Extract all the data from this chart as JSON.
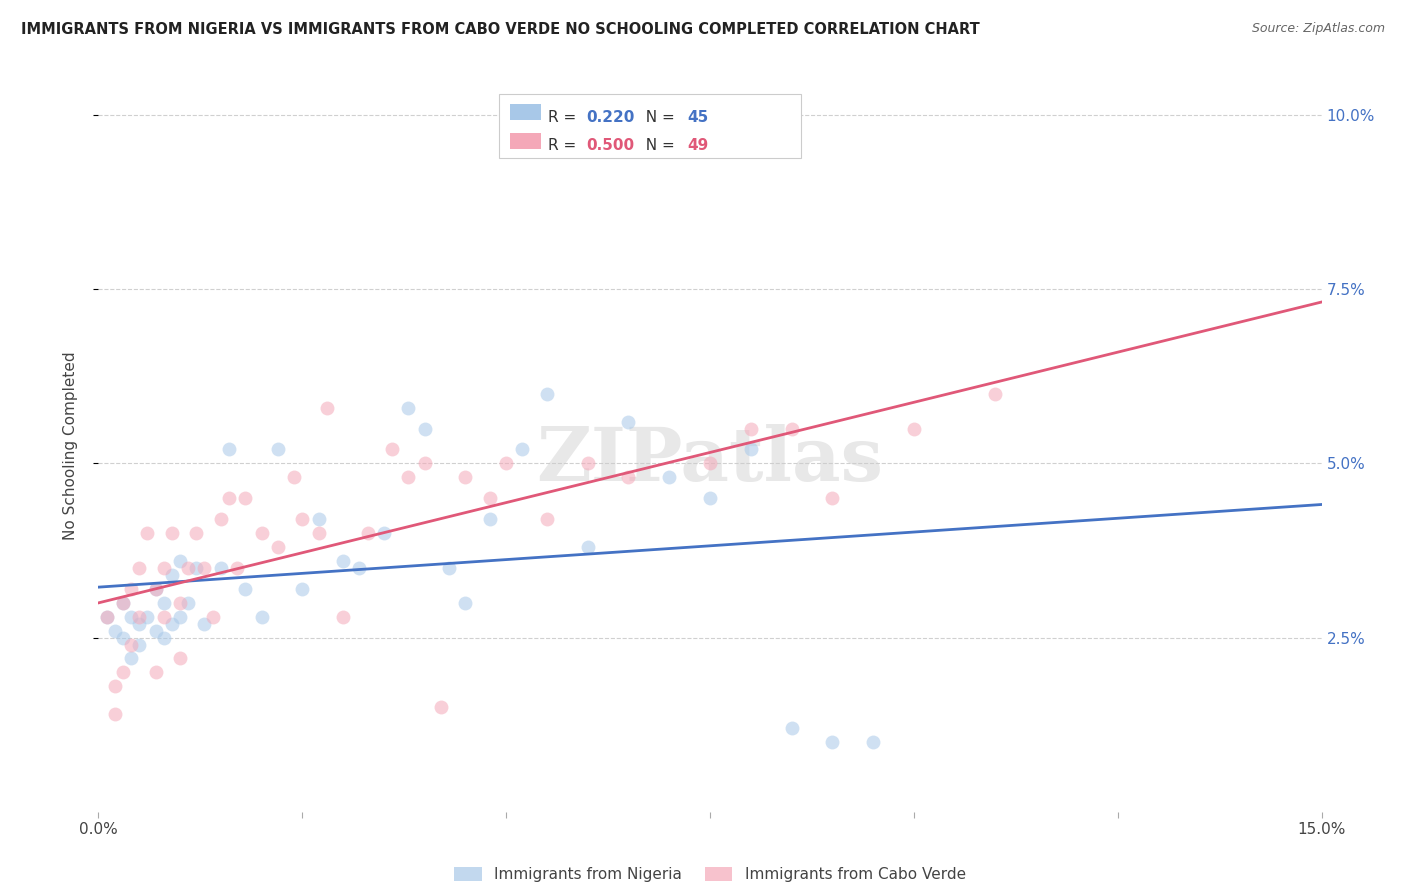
{
  "title": "IMMIGRANTS FROM NIGERIA VS IMMIGRANTS FROM CABO VERDE NO SCHOOLING COMPLETED CORRELATION CHART",
  "source": "Source: ZipAtlas.com",
  "ylabel": "No Schooling Completed",
  "xlim": [
    0.0,
    0.15
  ],
  "ylim": [
    0.0,
    0.105
  ],
  "blue_color": "#a8c8e8",
  "pink_color": "#f4a8b8",
  "blue_line_color": "#4472c4",
  "pink_line_color": "#e05878",
  "blue_r_color": "#4472c4",
  "pink_r_color": "#e05878",
  "right_axis_color": "#4472c4",
  "legend_r1": "R = ",
  "legend_r1_val": "0.220",
  "legend_n1": "  N = ",
  "legend_n1_val": "45",
  "legend_r2": "R = ",
  "legend_r2_val": "0.500",
  "legend_n2": "  N = ",
  "legend_n2_val": "49",
  "nigeria_x": [
    0.001,
    0.002,
    0.003,
    0.003,
    0.004,
    0.004,
    0.005,
    0.005,
    0.006,
    0.007,
    0.007,
    0.008,
    0.008,
    0.009,
    0.009,
    0.01,
    0.01,
    0.011,
    0.012,
    0.013,
    0.015,
    0.016,
    0.018,
    0.02,
    0.022,
    0.025,
    0.027,
    0.03,
    0.032,
    0.035,
    0.038,
    0.04,
    0.043,
    0.045,
    0.048,
    0.052,
    0.055,
    0.06,
    0.065,
    0.07,
    0.075,
    0.08,
    0.085,
    0.09,
    0.095
  ],
  "nigeria_y": [
    0.028,
    0.026,
    0.025,
    0.03,
    0.022,
    0.028,
    0.027,
    0.024,
    0.028,
    0.026,
    0.032,
    0.03,
    0.025,
    0.034,
    0.027,
    0.036,
    0.028,
    0.03,
    0.035,
    0.027,
    0.035,
    0.052,
    0.032,
    0.028,
    0.052,
    0.032,
    0.042,
    0.036,
    0.035,
    0.04,
    0.058,
    0.055,
    0.035,
    0.03,
    0.042,
    0.052,
    0.06,
    0.038,
    0.056,
    0.048,
    0.045,
    0.052,
    0.012,
    0.01,
    0.01
  ],
  "caboverde_x": [
    0.001,
    0.002,
    0.002,
    0.003,
    0.003,
    0.004,
    0.004,
    0.005,
    0.005,
    0.006,
    0.007,
    0.007,
    0.008,
    0.008,
    0.009,
    0.01,
    0.01,
    0.011,
    0.012,
    0.013,
    0.014,
    0.015,
    0.016,
    0.017,
    0.018,
    0.02,
    0.022,
    0.024,
    0.025,
    0.027,
    0.028,
    0.03,
    0.033,
    0.036,
    0.038,
    0.04,
    0.042,
    0.045,
    0.048,
    0.05,
    0.055,
    0.06,
    0.065,
    0.075,
    0.08,
    0.085,
    0.09,
    0.1,
    0.11
  ],
  "caboverde_y": [
    0.028,
    0.018,
    0.014,
    0.03,
    0.02,
    0.032,
    0.024,
    0.035,
    0.028,
    0.04,
    0.02,
    0.032,
    0.028,
    0.035,
    0.04,
    0.03,
    0.022,
    0.035,
    0.04,
    0.035,
    0.028,
    0.042,
    0.045,
    0.035,
    0.045,
    0.04,
    0.038,
    0.048,
    0.042,
    0.04,
    0.058,
    0.028,
    0.04,
    0.052,
    0.048,
    0.05,
    0.015,
    0.048,
    0.045,
    0.05,
    0.042,
    0.05,
    0.048,
    0.05,
    0.055,
    0.055,
    0.045,
    0.055,
    0.06
  ],
  "background_color": "#ffffff",
  "grid_color": "#d0d0d0"
}
